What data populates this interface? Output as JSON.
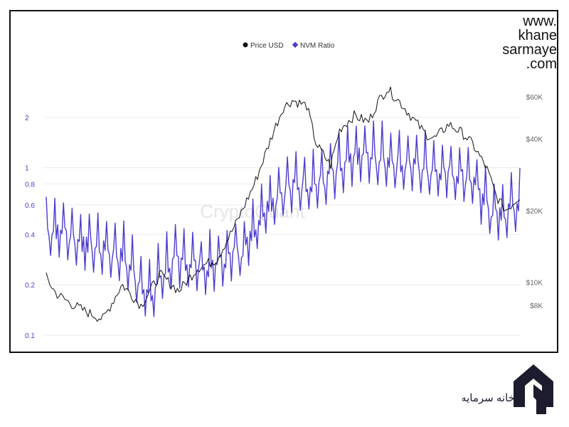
{
  "brand": {
    "lines": [
      "www.",
      "khane",
      "sarmaye",
      ".com"
    ],
    "logo_script_text": "خانه سرمایه"
  },
  "watermark": "CryptoQuant",
  "chart_data": {
    "type": "line",
    "legend": [
      {
        "label": "Price USD",
        "color": "#111111"
      },
      {
        "label": "NVM Ratio",
        "color": "#4b3dd1"
      }
    ],
    "legend_placement": "top-center",
    "left_axis": {
      "scale": "log",
      "range": [
        0.1,
        4
      ],
      "ticks": [
        "2",
        "1",
        "0.8",
        "0.6",
        "0.4",
        "0.2",
        "0.1"
      ],
      "tick_values": [
        2,
        1,
        0.8,
        0.6,
        0.4,
        0.2,
        0.1
      ]
    },
    "right_axis": {
      "scale": "log",
      "range": [
        6000,
        80000
      ],
      "ticks": [
        "$60K",
        "$40K",
        "$20K",
        "$10K",
        "$8K"
      ],
      "tick_values": [
        60000,
        40000,
        20000,
        10000,
        8000
      ]
    },
    "grid": true,
    "series": [
      {
        "name": "Price USD",
        "axis": "right",
        "color": "#111111",
        "x": [
          0,
          0.02,
          0.05,
          0.08,
          0.12,
          0.16,
          0.2,
          0.24,
          0.28,
          0.32,
          0.36,
          0.4,
          0.44,
          0.48,
          0.5,
          0.52,
          0.55,
          0.57,
          0.6,
          0.62,
          0.65,
          0.68,
          0.7,
          0.72,
          0.75,
          0.78,
          0.8,
          0.82,
          0.85,
          0.88,
          0.9,
          0.93,
          0.95,
          0.97,
          1.0
        ],
        "values": [
          10500,
          9000,
          8200,
          7600,
          7000,
          9800,
          8000,
          10800,
          9200,
          11500,
          12500,
          17500,
          26000,
          43000,
          54000,
          58000,
          55000,
          38000,
          31000,
          44000,
          50000,
          47000,
          57000,
          65000,
          56000,
          47000,
          42000,
          40000,
          46000,
          42000,
          38000,
          30000,
          23000,
          20000,
          23000
        ]
      },
      {
        "name": "NVM Ratio",
        "axis": "left",
        "color": "#4b3dd1",
        "x": [
          0,
          0.04,
          0.08,
          0.12,
          0.16,
          0.2,
          0.22,
          0.24,
          0.26,
          0.3,
          0.34,
          0.38,
          0.42,
          0.46,
          0.5,
          0.54,
          0.58,
          0.62,
          0.66,
          0.7,
          0.74,
          0.78,
          0.82,
          0.86,
          0.9,
          0.92,
          0.94,
          0.96,
          0.98,
          1.0
        ],
        "values": [
          0.42,
          0.4,
          0.34,
          0.32,
          0.29,
          0.2,
          0.16,
          0.22,
          0.26,
          0.27,
          0.24,
          0.28,
          0.33,
          0.55,
          0.72,
          0.78,
          0.8,
          0.95,
          1.15,
          1.1,
          1.05,
          1.0,
          0.95,
          0.9,
          0.85,
          0.62,
          0.55,
          0.5,
          0.55,
          0.6
        ]
      }
    ]
  }
}
